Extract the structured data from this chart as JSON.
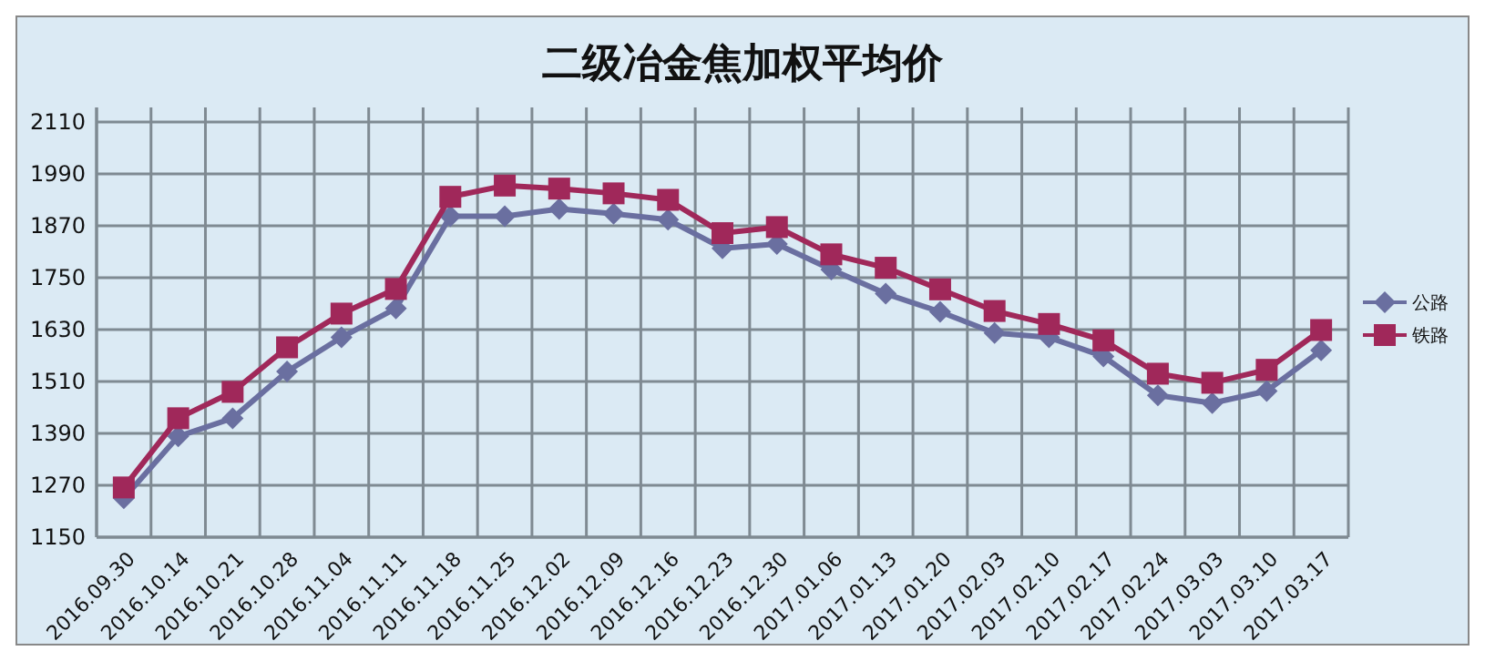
{
  "chart_data": {
    "type": "line",
    "title": "二级冶金焦加权平均价",
    "categories": [
      "2016.09.30",
      "2016.10.14",
      "2016.10.21",
      "2016.10.28",
      "2016.11.04",
      "2016.11.11",
      "2016.11.18",
      "2016.11.25",
      "2016.12.02",
      "2016.12.09",
      "2016.12.16",
      "2016.12.23",
      "2016.12.30",
      "2017.01.06",
      "2017.01.13",
      "2017.01.20",
      "2017.02.03",
      "2017.02.10",
      "2017.02.17",
      "2017.02.24",
      "2017.03.03",
      "2017.03.10",
      "2017.03.17"
    ],
    "series": [
      {
        "name": "公路",
        "color": "#6a6fa0",
        "marker": "diamond",
        "values": [
          1240,
          1383,
          1425,
          1533,
          1612,
          1679,
          1892,
          1892,
          1909,
          1898,
          1884,
          1818,
          1828,
          1769,
          1713,
          1671,
          1622,
          1612,
          1568,
          1478,
          1460,
          1488,
          1582
        ]
      },
      {
        "name": "铁路",
        "color": "#a0285a",
        "marker": "square",
        "values": [
          1265,
          1425,
          1486,
          1589,
          1667,
          1724,
          1937,
          1963,
          1956,
          1945,
          1930,
          1853,
          1867,
          1804,
          1773,
          1723,
          1673,
          1643,
          1605,
          1528,
          1507,
          1537,
          1629
        ]
      }
    ],
    "ylim": [
      1150,
      2110
    ],
    "yticks": [
      1150,
      1270,
      1390,
      1510,
      1630,
      1750,
      1870,
      1990,
      2110
    ],
    "grid": true,
    "legend": "right",
    "line_style": "solid"
  }
}
